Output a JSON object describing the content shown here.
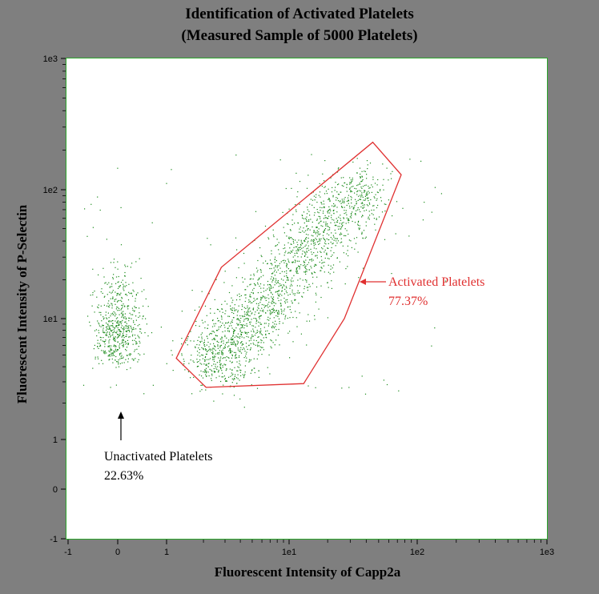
{
  "chart_data": {
    "type": "scatter",
    "title": "Identification of Activated Platelets",
    "subtitle": "(Measured Sample of 5000 Platelets)",
    "xlabel": "Fluorescent Intensity of Capp2a",
    "ylabel": "Fluorescent Intensity of P-Selectin",
    "scale": "log-like (negative, zero and decades)",
    "x_ticks": [
      "-1",
      "0",
      "1",
      "1e1",
      "1e2",
      "1e3"
    ],
    "y_ticks": [
      "1e3",
      "1e2",
      "1e1",
      "1",
      "0",
      "-1"
    ],
    "xlim": [
      "-1",
      "1e3"
    ],
    "ylim": [
      "-1",
      "1e3"
    ],
    "sample_size": 5000,
    "point_color": "#1a8a1a",
    "gate_color": "#e03030",
    "gate_polygon": [
      {
        "x": 1.2,
        "y": 4.7
      },
      {
        "x": 2.8,
        "y": 25
      },
      {
        "x": 45,
        "y": 230
      },
      {
        "x": 75,
        "y": 130
      },
      {
        "x": 27,
        "y": 10
      },
      {
        "x": 13,
        "y": 2.9
      },
      {
        "x": 2.1,
        "y": 2.7
      }
    ],
    "clusters": [
      {
        "name": "Activated Platelets",
        "percent": 77.37,
        "x_range": [
          2,
          40
        ],
        "y_range": [
          3,
          140
        ]
      },
      {
        "name": "Unactivated Platelets",
        "percent": 22.63,
        "x_range": [
          -0.5,
          1
        ],
        "y_range": [
          2,
          80
        ]
      }
    ]
  },
  "annotations": {
    "activated_label": "Activated Platelets",
    "activated_pct": "77.37%",
    "unactivated_label": "Unactivated Platelets",
    "unactivated_pct": "22.63%"
  }
}
